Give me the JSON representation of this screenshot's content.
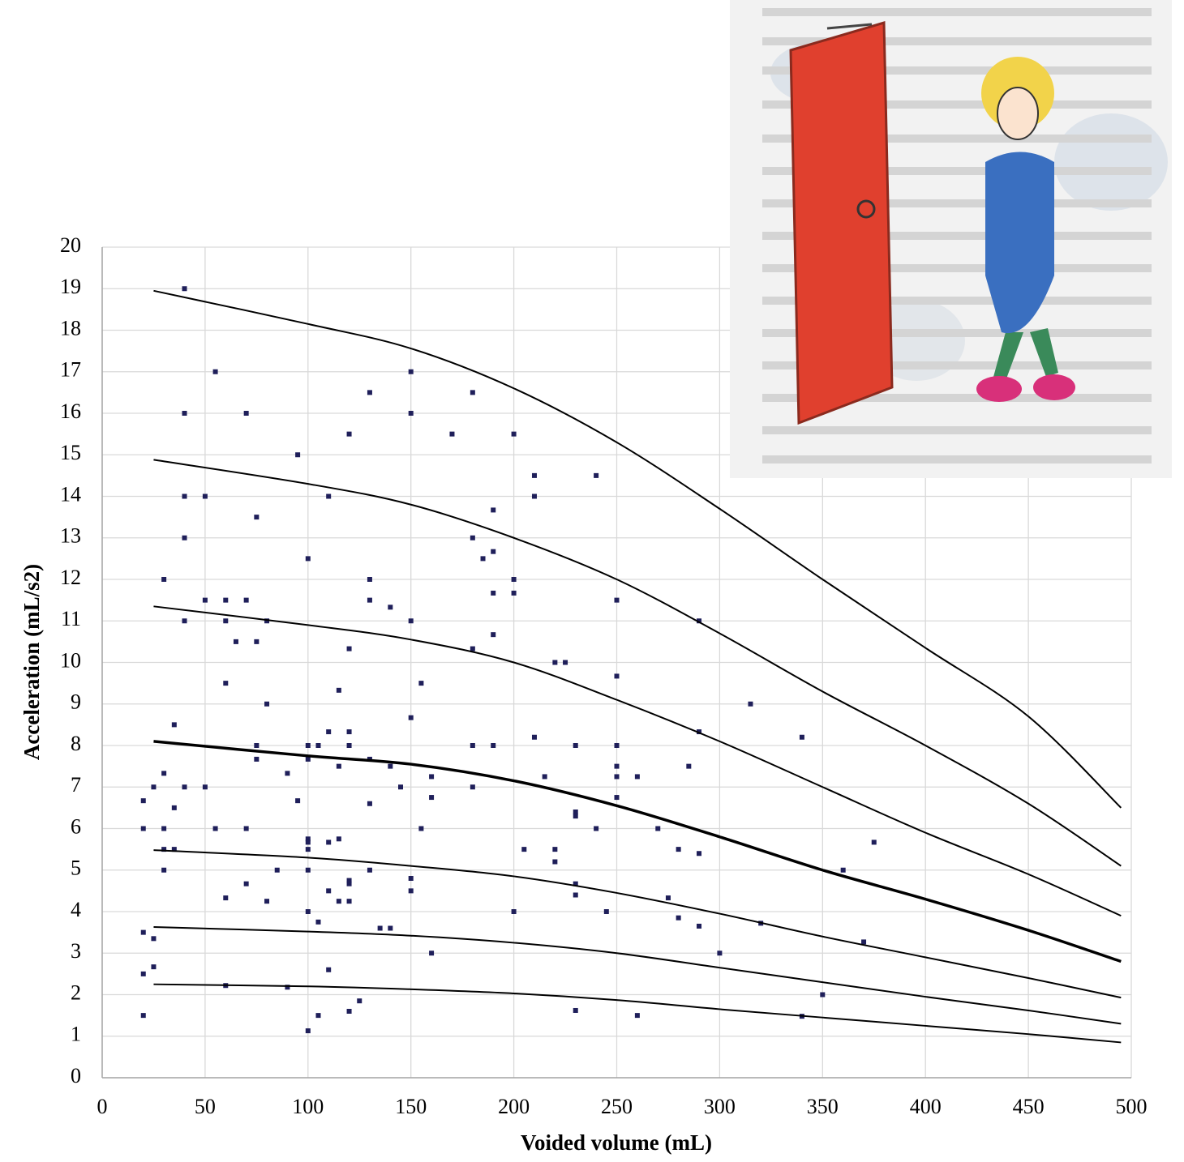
{
  "chart_data": {
    "type": "scatter",
    "x_label": "Voided volume (mL)",
    "y_label": "Acceleration (mL/s2)",
    "xlim": [
      0,
      500
    ],
    "xticks": [
      0,
      50,
      100,
      150,
      200,
      250,
      300,
      350,
      400,
      450,
      500
    ],
    "ylim": [
      0,
      20
    ],
    "yticks": [
      0,
      1,
      2,
      3,
      4,
      5,
      6,
      7,
      8,
      9,
      10,
      11,
      12,
      13,
      14,
      15,
      16,
      17,
      18,
      19,
      20
    ],
    "grid": true,
    "series": [
      {
        "type": "scatter",
        "color": "#1f1f5a",
        "x": [
          40,
          55,
          40,
          70,
          130,
          150,
          150,
          180,
          120,
          170,
          200,
          95,
          40,
          50,
          110,
          210,
          210,
          240,
          75,
          40,
          190,
          180,
          185,
          190,
          30,
          100,
          130,
          200,
          50,
          60,
          70,
          130,
          140,
          40,
          60,
          80,
          150,
          190,
          200,
          250,
          290,
          65,
          75,
          120,
          180,
          190,
          220,
          225,
          60,
          115,
          155,
          250,
          80,
          315,
          35,
          150,
          110,
          120,
          290,
          340,
          210,
          75,
          100,
          105,
          120,
          180,
          190,
          230,
          250,
          75,
          100,
          130,
          115,
          140,
          250,
          285,
          30,
          90,
          160,
          215,
          250,
          260,
          25,
          40,
          50,
          145,
          180,
          20,
          95,
          160,
          250,
          35,
          130,
          230,
          230,
          20,
          30,
          55,
          70,
          155,
          240,
          270,
          100,
          100,
          115,
          110,
          375,
          30,
          35,
          100,
          205,
          220,
          280,
          290,
          220,
          30,
          85,
          100,
          130,
          360,
          150,
          70,
          120,
          120,
          230,
          110,
          150,
          230,
          60,
          80,
          115,
          120,
          275,
          100,
          200,
          245,
          280,
          105,
          320,
          135,
          140,
          290,
          20,
          25,
          370,
          160,
          300,
          25,
          20,
          110,
          60,
          90,
          350,
          125,
          20,
          105,
          120,
          230,
          260,
          340,
          100
        ],
        "values": [
          19,
          17,
          16,
          16,
          16.5,
          17,
          16,
          16.5,
          15.5,
          15.5,
          15.5,
          15,
          14,
          14,
          14,
          14.5,
          14,
          14.5,
          13.5,
          13,
          13.67,
          13,
          12.5,
          12.67,
          12,
          12.5,
          12,
          12,
          11.5,
          11.5,
          11.5,
          11.5,
          11.33,
          11,
          11,
          11,
          11,
          11.67,
          11.67,
          11.5,
          11,
          10.5,
          10.5,
          10.33,
          10.33,
          10.67,
          10,
          10,
          9.5,
          9.33,
          9.5,
          9.67,
          9,
          9,
          8.5,
          8.67,
          8.33,
          8.33,
          8.33,
          8.2,
          8.2,
          8,
          8,
          8,
          8,
          8,
          8,
          8,
          8,
          7.67,
          7.67,
          7.67,
          7.5,
          7.5,
          7.5,
          7.5,
          7.33,
          7.33,
          7.25,
          7.25,
          7.25,
          7.25,
          7,
          7,
          7,
          7,
          7,
          6.67,
          6.67,
          6.75,
          6.75,
          6.5,
          6.6,
          6.4,
          6.3,
          6,
          6,
          6,
          6,
          6,
          6,
          6,
          5.75,
          5.67,
          5.75,
          5.67,
          5.67,
          5.5,
          5.5,
          5.5,
          5.5,
          5.5,
          5.5,
          5.4,
          5.2,
          5,
          5,
          5,
          5,
          5,
          4.8,
          4.67,
          4.75,
          4.67,
          4.67,
          4.5,
          4.5,
          4.4,
          4.33,
          4.25,
          4.25,
          4.25,
          4.33,
          4,
          4,
          4,
          3.85,
          3.75,
          3.72,
          3.6,
          3.6,
          3.65,
          3.5,
          3.35,
          3.27,
          3,
          3,
          2.67,
          2.5,
          2.6,
          2.22,
          2.18,
          2,
          1.85,
          1.5,
          1.5,
          1.6,
          1.62,
          1.5,
          1.48,
          1.13
        ]
      },
      {
        "type": "line",
        "color": "#000000",
        "width": 2,
        "x": [
          25,
          100,
          150,
          200,
          250,
          300,
          350,
          400,
          450,
          495
        ],
        "values": [
          18.95,
          18.15,
          17.56,
          16.6,
          15.3,
          13.7,
          12.0,
          10.35,
          8.7,
          6.5
        ]
      },
      {
        "type": "line",
        "color": "#000000",
        "width": 2,
        "x": [
          25,
          100,
          150,
          200,
          250,
          300,
          350,
          400,
          450,
          495
        ],
        "values": [
          14.88,
          14.3,
          13.8,
          13.0,
          12.0,
          10.7,
          9.3,
          8.0,
          6.6,
          5.1
        ]
      },
      {
        "type": "line",
        "color": "#000000",
        "width": 2,
        "x": [
          25,
          100,
          150,
          200,
          250,
          300,
          350,
          400,
          450,
          495
        ],
        "values": [
          11.35,
          10.9,
          10.55,
          10.0,
          9.1,
          8.1,
          7.0,
          5.9,
          4.9,
          3.9
        ]
      },
      {
        "type": "line",
        "color": "#000000",
        "width": 3.5,
        "x": [
          25,
          100,
          150,
          200,
          250,
          300,
          350,
          400,
          450,
          495
        ],
        "values": [
          8.1,
          7.75,
          7.55,
          7.15,
          6.55,
          5.8,
          5.0,
          4.3,
          3.55,
          2.8
        ]
      },
      {
        "type": "line",
        "color": "#000000",
        "width": 2,
        "x": [
          25,
          100,
          150,
          200,
          250,
          300,
          350,
          400,
          450,
          495
        ],
        "values": [
          5.48,
          5.3,
          5.1,
          4.85,
          4.45,
          3.95,
          3.4,
          2.9,
          2.4,
          1.93
        ]
      },
      {
        "type": "line",
        "color": "#000000",
        "width": 2,
        "x": [
          25,
          100,
          150,
          200,
          250,
          300,
          350,
          400,
          450,
          495
        ],
        "values": [
          3.63,
          3.52,
          3.42,
          3.25,
          3.0,
          2.65,
          2.3,
          1.95,
          1.62,
          1.3
        ]
      },
      {
        "type": "line",
        "color": "#000000",
        "width": 2,
        "x": [
          25,
          100,
          150,
          200,
          250,
          300,
          350,
          400,
          450,
          495
        ],
        "values": [
          2.25,
          2.2,
          2.13,
          2.03,
          1.87,
          1.65,
          1.45,
          1.25,
          1.05,
          0.85
        ]
      }
    ]
  }
}
